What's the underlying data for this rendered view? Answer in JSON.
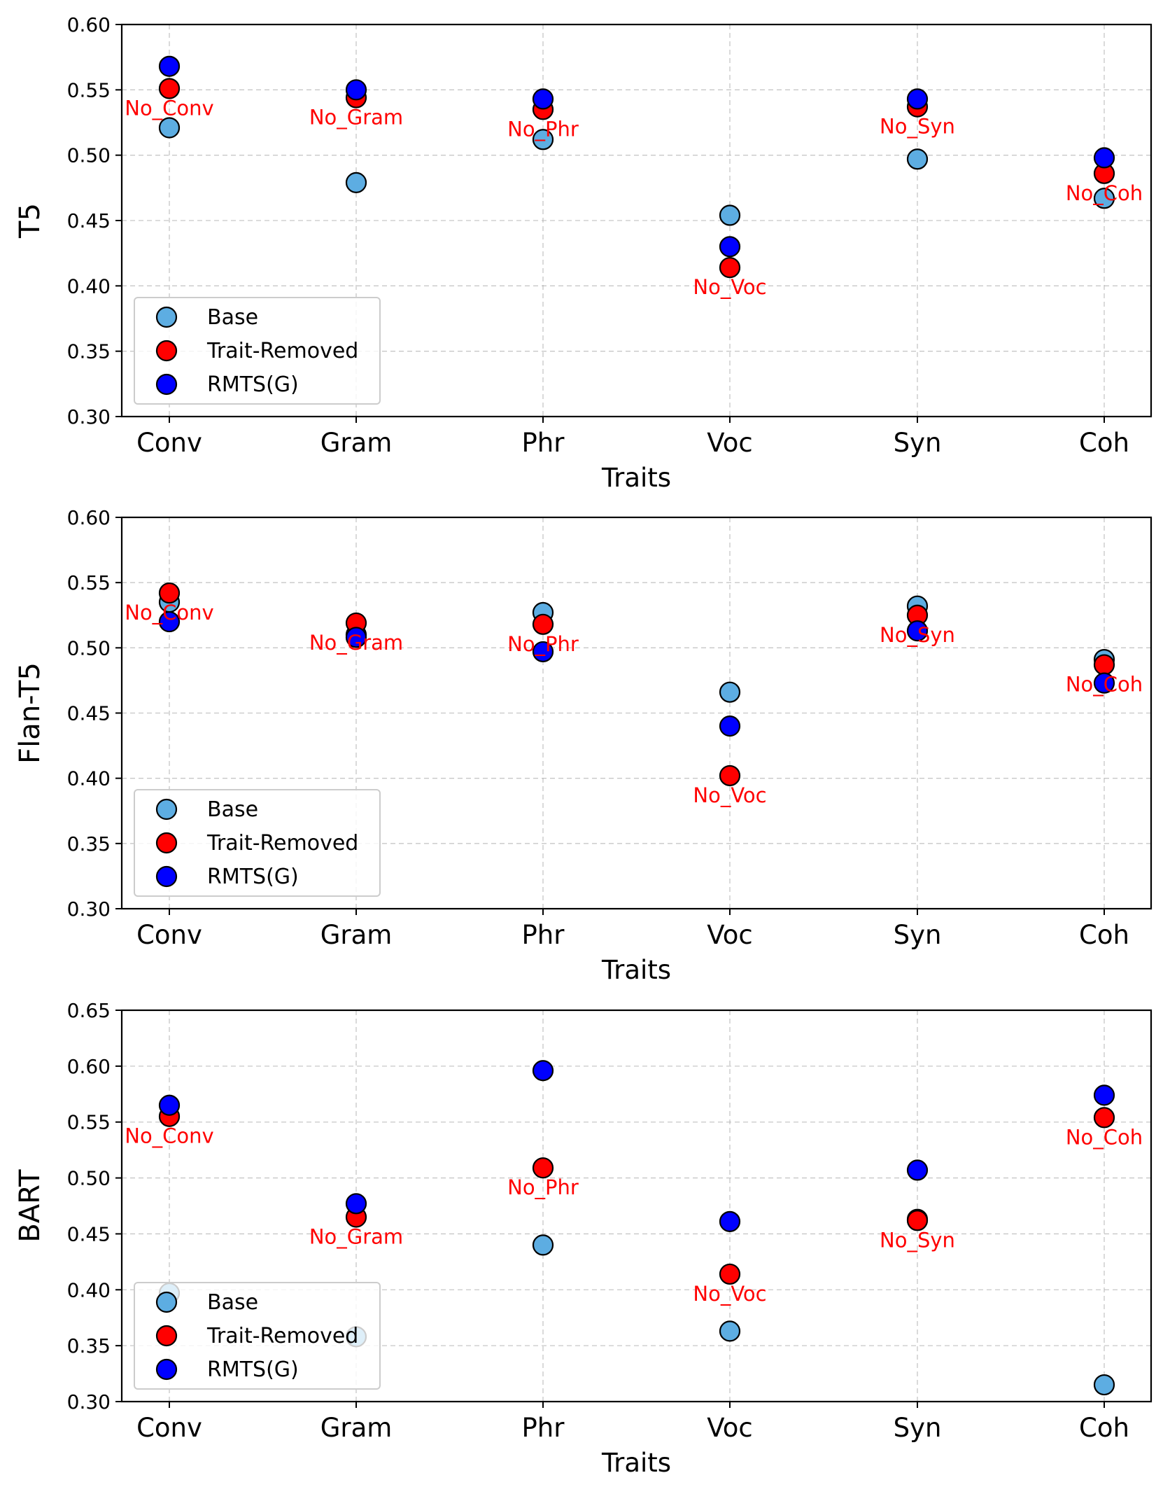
{
  "chart_data": [
    {
      "type": "scatter",
      "ylabel": "T5",
      "xlabel": "Traits",
      "categories": [
        "Conv",
        "Gram",
        "Phr",
        "Voc",
        "Syn",
        "Coh"
      ],
      "ylim": [
        0.3,
        0.6
      ],
      "yticks": [
        "0.30",
        "0.35",
        "0.40",
        "0.45",
        "0.50",
        "0.55",
        "0.60"
      ],
      "grid": true,
      "legend_position": "lower-left",
      "series": [
        {
          "name": "Base",
          "color": "#5dade2",
          "values": [
            0.521,
            0.479,
            0.512,
            0.454,
            0.497,
            0.467
          ]
        },
        {
          "name": "Trait-Removed",
          "color": "#ff0000",
          "values": [
            0.551,
            0.544,
            0.535,
            0.414,
            0.537,
            0.486
          ]
        },
        {
          "name": "RMTS(G)",
          "color": "#0000ff",
          "values": [
            0.568,
            0.55,
            0.543,
            0.43,
            0.543,
            0.498
          ]
        }
      ],
      "annotations": [
        "No_Conv",
        "No_Gram",
        "No_Phr",
        "No_Voc",
        "No_Syn",
        "No_Coh"
      ],
      "annotation_color": "#ff0000"
    },
    {
      "type": "scatter",
      "ylabel": "Flan-T5",
      "xlabel": "Traits",
      "categories": [
        "Conv",
        "Gram",
        "Phr",
        "Voc",
        "Syn",
        "Coh"
      ],
      "ylim": [
        0.3,
        0.6
      ],
      "yticks": [
        "0.30",
        "0.35",
        "0.40",
        "0.45",
        "0.50",
        "0.55",
        "0.60"
      ],
      "grid": true,
      "legend_position": "lower-left",
      "series": [
        {
          "name": "Base",
          "color": "#5dade2",
          "values": [
            0.535,
            0.51,
            0.527,
            0.466,
            0.532,
            0.491
          ]
        },
        {
          "name": "Trait-Removed",
          "color": "#ff0000",
          "values": [
            0.542,
            0.519,
            0.518,
            0.402,
            0.525,
            0.487
          ]
        },
        {
          "name": "RMTS(G)",
          "color": "#0000ff",
          "values": [
            0.52,
            0.508,
            0.497,
            0.44,
            0.513,
            0.473
          ]
        }
      ],
      "annotations": [
        "No_Conv",
        "No_Gram",
        "No_Phr",
        "No_Voc",
        "No_Syn",
        "No_Coh"
      ],
      "annotation_color": "#ff0000"
    },
    {
      "type": "scatter",
      "ylabel": "BART",
      "xlabel": "Traits",
      "categories": [
        "Conv",
        "Gram",
        "Phr",
        "Voc",
        "Syn",
        "Coh"
      ],
      "ylim": [
        0.3,
        0.65
      ],
      "yticks": [
        "0.30",
        "0.35",
        "0.40",
        "0.45",
        "0.50",
        "0.55",
        "0.60",
        "0.65"
      ],
      "grid": true,
      "legend_position": "lower-left",
      "series": [
        {
          "name": "Base",
          "color": "#5dade2",
          "values": [
            0.397,
            0.358,
            0.44,
            0.363,
            0.463,
            0.315
          ]
        },
        {
          "name": "Trait-Removed",
          "color": "#ff0000",
          "values": [
            0.555,
            0.465,
            0.509,
            0.414,
            0.462,
            0.554
          ]
        },
        {
          "name": "RMTS(G)",
          "color": "#0000ff",
          "values": [
            0.565,
            0.477,
            0.596,
            0.461,
            0.507,
            0.574
          ]
        }
      ],
      "annotations": [
        "No_Conv",
        "No_Gram",
        "No_Phr",
        "No_Voc",
        "No_Syn",
        "No_Coh"
      ],
      "annotation_color": "#ff0000"
    }
  ]
}
